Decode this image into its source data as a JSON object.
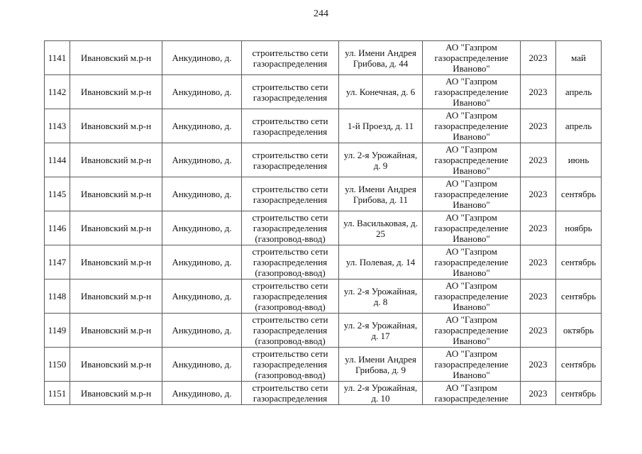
{
  "page": {
    "number": "244"
  },
  "table": {
    "rows": [
      {
        "num": "1141",
        "district": "Ивановский м.р-н",
        "settlement": "Анкудиново, д.",
        "work": "строительство сети газораспределения",
        "address": "ул. Имени Андрея Грибова, д. 44",
        "org": "АО \"Газпром газораспределение Иваново\"",
        "year": "2023",
        "month": "май"
      },
      {
        "num": "1142",
        "district": "Ивановский м.р-н",
        "settlement": "Анкудиново, д.",
        "work": "строительство сети газораспределения",
        "address": "ул. Конечная, д. 6",
        "org": "АО \"Газпром газораспределение Иваново\"",
        "year": "2023",
        "month": "апрель"
      },
      {
        "num": "1143",
        "district": "Ивановский м.р-н",
        "settlement": "Анкудиново, д.",
        "work": "строительство сети газораспределения",
        "address": "1-й Проезд, д. 11",
        "org": "АО \"Газпром газораспределение Иваново\"",
        "year": "2023",
        "month": "апрель"
      },
      {
        "num": "1144",
        "district": "Ивановский м.р-н",
        "settlement": "Анкудиново, д.",
        "work": "строительство сети газораспределения",
        "address": "ул. 2-я Урожайная, д. 9",
        "org": "АО \"Газпром газораспределение Иваново\"",
        "year": "2023",
        "month": "июнь"
      },
      {
        "num": "1145",
        "district": "Ивановский м.р-н",
        "settlement": "Анкудиново, д.",
        "work": "строительство сети газораспределения",
        "address": "ул. Имени Андрея Грибова, д. 11",
        "org": "АО \"Газпром газораспределение Иваново\"",
        "year": "2023",
        "month": "сентябрь"
      },
      {
        "num": "1146",
        "district": "Ивановский м.р-н",
        "settlement": "Анкудиново, д.",
        "work": "строительство сети газораспределения (газопровод-ввод)",
        "address": "ул. Васильковая, д. 25",
        "org": "АО \"Газпром газораспределение Иваново\"",
        "year": "2023",
        "month": "ноябрь"
      },
      {
        "num": "1147",
        "district": "Ивановский м.р-н",
        "settlement": "Анкудиново, д.",
        "work": "строительство сети газораспределения (газопровод-ввод)",
        "address": "ул. Полевая, д. 14",
        "org": "АО \"Газпром газораспределение Иваново\"",
        "year": "2023",
        "month": "сентябрь"
      },
      {
        "num": "1148",
        "district": "Ивановский м.р-н",
        "settlement": "Анкудиново, д.",
        "work": "строительство сети газораспределения (газопровод-ввод)",
        "address": "ул. 2-я Урожайная, д. 8",
        "org": "АО \"Газпром газораспределение Иваново\"",
        "year": "2023",
        "month": "сентябрь"
      },
      {
        "num": "1149",
        "district": "Ивановский м.р-н",
        "settlement": "Анкудиново, д.",
        "work": "строительство сети газораспределения (газопровод-ввод)",
        "address": "ул. 2-я Урожайная, д. 17",
        "org": "АО \"Газпром газораспределение Иваново\"",
        "year": "2023",
        "month": "октябрь"
      },
      {
        "num": "1150",
        "district": "Ивановский м.р-н",
        "settlement": "Анкудиново, д.",
        "work": "строительство сети газораспределения (газопровод-ввод)",
        "address": "ул. Имени Андрея Грибова, д. 9",
        "org": "АО \"Газпром газораспределение Иваново\"",
        "year": "2023",
        "month": "сентябрь"
      },
      {
        "num": "1151",
        "district": "Ивановский м.р-н",
        "settlement": "Анкудиново, д.",
        "work": "строительство сети газораспределения",
        "address": "ул. 2-я Урожайная, д. 10",
        "org": "АО \"Газпром газораспределение",
        "year": "2023",
        "month": "сентябрь"
      }
    ]
  }
}
